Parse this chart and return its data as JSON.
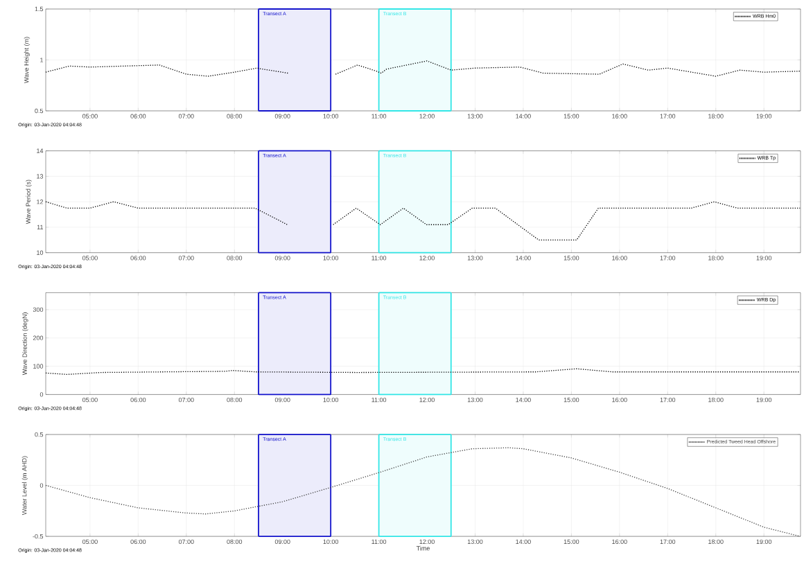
{
  "chart_data": [
    {
      "type": "line",
      "ylabel": "Wave Height (m)",
      "annotations": [
        "Origin: 03-Jan-2020 04:04:48"
      ],
      "xlim": [
        4.08,
        19.76
      ],
      "ylim": [
        0.5,
        1.5
      ],
      "yticks": [
        0.5,
        1,
        1.5
      ],
      "xticks": [
        {
          "value": 5,
          "label": "05:00"
        },
        {
          "value": 6,
          "label": "06:00"
        },
        {
          "value": 7,
          "label": "07:00"
        },
        {
          "value": 8,
          "label": "08:00"
        },
        {
          "value": 9,
          "label": "09:00"
        },
        {
          "value": 10,
          "label": "10:00"
        },
        {
          "value": 11,
          "label": "11:00"
        },
        {
          "value": 12,
          "label": "12:00"
        },
        {
          "value": 13,
          "label": "13:00"
        },
        {
          "value": 14,
          "label": "14:00"
        },
        {
          "value": 15,
          "label": "15:00"
        },
        {
          "value": 16,
          "label": "16:00"
        },
        {
          "value": 17,
          "label": "17:00"
        },
        {
          "value": 18,
          "label": "18:00"
        },
        {
          "value": 19,
          "label": "19:00"
        }
      ],
      "grid": true,
      "legend": "top right",
      "marker": "none",
      "line_style": "dotted",
      "bands": [
        {
          "axis": "x",
          "from": 8.5,
          "to": 10,
          "label": "Transect A",
          "color": "#1414cc"
        },
        {
          "axis": "x",
          "from": 11,
          "to": 12.5,
          "label": "Transect B",
          "color": "#33e6e6"
        }
      ],
      "series": [
        {
          "name": "WRB Hm0",
          "color": "#000000",
          "x": [
            4.08,
            4.57,
            5.0,
            6.44,
            7.0,
            7.45,
            8.0,
            8.47,
            8.58,
            9.12,
            9.6,
            10.1,
            10.56,
            10.95,
            11.05,
            11.16,
            12.0,
            12.5,
            13.0,
            13.93,
            14.42,
            15.58,
            16.07,
            16.6,
            17.0,
            18.0,
            18.5,
            19.0,
            19.76
          ],
          "values": [
            0.88,
            0.94,
            0.93,
            0.95,
            0.86,
            0.84,
            0.88,
            0.92,
            0.91,
            0.87,
            null,
            0.86,
            0.95,
            0.89,
            0.87,
            0.91,
            0.99,
            0.9,
            0.92,
            0.93,
            0.87,
            0.86,
            0.96,
            0.9,
            0.92,
            0.84,
            0.9,
            0.88,
            0.89
          ]
        }
      ]
    },
    {
      "type": "line",
      "ylabel": "Wave Period (s)",
      "annotations": [
        "Origin: 03-Jan-2020 04:04:48"
      ],
      "xlim": [
        4.08,
        19.76
      ],
      "ylim": [
        10,
        14
      ],
      "yticks": [
        10,
        11,
        12,
        13,
        14
      ],
      "xticks": [
        {
          "value": 5,
          "label": "05:00"
        },
        {
          "value": 6,
          "label": "06:00"
        },
        {
          "value": 7,
          "label": "07:00"
        },
        {
          "value": 8,
          "label": "08:00"
        },
        {
          "value": 9,
          "label": "09:00"
        },
        {
          "value": 10,
          "label": "10:00"
        },
        {
          "value": 11,
          "label": "11:00"
        },
        {
          "value": 12,
          "label": "12:00"
        },
        {
          "value": 13,
          "label": "13:00"
        },
        {
          "value": 14,
          "label": "14:00"
        },
        {
          "value": 15,
          "label": "15:00"
        },
        {
          "value": 16,
          "label": "16:00"
        },
        {
          "value": 17,
          "label": "17:00"
        },
        {
          "value": 18,
          "label": "18:00"
        },
        {
          "value": 19,
          "label": "19:00"
        }
      ],
      "grid": true,
      "legend": "top right",
      "marker": "none",
      "line_style": "dotted",
      "bands": [
        {
          "axis": "x",
          "from": 8.5,
          "to": 10,
          "label": "Transect A",
          "color": "#1414cc"
        },
        {
          "axis": "x",
          "from": 11,
          "to": 12.5,
          "label": "Transect B",
          "color": "#33e6e6"
        }
      ],
      "series": [
        {
          "name": "WRB Tp",
          "color": "#000000",
          "x": [
            4.08,
            4.52,
            5.0,
            5.49,
            6.0,
            8.43,
            9.1,
            9.6,
            10.05,
            10.53,
            11.03,
            11.51,
            11.99,
            12.44,
            12.94,
            13.42,
            14.32,
            15.11,
            15.56,
            17.49,
            17.97,
            18.45,
            19.75
          ],
          "values": [
            12.0,
            11.75,
            11.75,
            12.0,
            11.75,
            11.75,
            11.1,
            null,
            11.1,
            11.75,
            11.1,
            11.75,
            11.1,
            11.1,
            11.75,
            11.75,
            10.5,
            10.5,
            11.75,
            11.75,
            12.0,
            11.75,
            11.75
          ]
        }
      ]
    },
    {
      "type": "line",
      "ylabel": "Wave Direction (degN)",
      "annotations": [
        "Origin: 03-Jan-2020 04:04:48"
      ],
      "xlim": [
        4.08,
        19.76
      ],
      "ylim": [
        0,
        360
      ],
      "yticks": [
        0,
        100,
        200,
        300
      ],
      "xticks": [
        {
          "value": 5,
          "label": "05:00"
        },
        {
          "value": 6,
          "label": "06:00"
        },
        {
          "value": 7,
          "label": "07:00"
        },
        {
          "value": 8,
          "label": "08:00"
        },
        {
          "value": 9,
          "label": "09:00"
        },
        {
          "value": 10,
          "label": "10:00"
        },
        {
          "value": 11,
          "label": "11:00"
        },
        {
          "value": 12,
          "label": "12:00"
        },
        {
          "value": 13,
          "label": "13:00"
        },
        {
          "value": 14,
          "label": "14:00"
        },
        {
          "value": 15,
          "label": "15:00"
        },
        {
          "value": 16,
          "label": "16:00"
        },
        {
          "value": 17,
          "label": "17:00"
        },
        {
          "value": 18,
          "label": "18:00"
        },
        {
          "value": 19,
          "label": "19:00"
        }
      ],
      "grid": true,
      "legend": "top right",
      "marker": "none",
      "line_style": "dotted",
      "bands": [
        {
          "axis": "x",
          "from": 8.5,
          "to": 10,
          "label": "Transect A",
          "color": "#1414cc"
        },
        {
          "axis": "x",
          "from": 11,
          "to": 12.5,
          "label": "Transect B",
          "color": "#33e6e6"
        }
      ],
      "series": [
        {
          "name": "WRB Dp",
          "color": "#000000",
          "x": [
            4.08,
            4.52,
            5.24,
            7.8,
            7.96,
            8.43,
            10.55,
            14.26,
            15.11,
            15.85,
            19.75
          ],
          "values": [
            76,
            71,
            78,
            82,
            85,
            80,
            78,
            80,
            91,
            80,
            80
          ]
        }
      ]
    },
    {
      "type": "line",
      "ylabel": "Water Level (m AHD)",
      "xlabel": "Time",
      "annotations": [
        "Origin: 03-Jan-2020 04:04:48"
      ],
      "xlim": [
        4.08,
        19.76
      ],
      "ylim": [
        -0.5,
        0.5
      ],
      "yticks": [
        -0.5,
        0,
        0.5
      ],
      "xticks": [
        {
          "value": 5,
          "label": "05:00"
        },
        {
          "value": 6,
          "label": "06:00"
        },
        {
          "value": 7,
          "label": "07:00"
        },
        {
          "value": 8,
          "label": "08:00"
        },
        {
          "value": 9,
          "label": "09:00"
        },
        {
          "value": 10,
          "label": "10:00"
        },
        {
          "value": 11,
          "label": "11:00"
        },
        {
          "value": 12,
          "label": "12:00"
        },
        {
          "value": 13,
          "label": "13:00"
        },
        {
          "value": 14,
          "label": "14:00"
        },
        {
          "value": 15,
          "label": "15:00"
        },
        {
          "value": 16,
          "label": "16:00"
        },
        {
          "value": 17,
          "label": "17:00"
        },
        {
          "value": 18,
          "label": "18:00"
        },
        {
          "value": 19,
          "label": "19:00"
        }
      ],
      "grid": true,
      "legend": "top right",
      "marker": "none",
      "line_style": "dotted",
      "bands": [
        {
          "axis": "x",
          "from": 8.5,
          "to": 10,
          "label": "Transect A",
          "color": "#1414cc"
        },
        {
          "axis": "x",
          "from": 11,
          "to": 12.5,
          "label": "Transect B",
          "color": "#33e6e6"
        }
      ],
      "series": [
        {
          "name": "Predicted Tweed Head Offshore",
          "color": "#444444",
          "x": [
            4.08,
            5.0,
            6.0,
            6.98,
            7.4,
            8.0,
            9.0,
            10.0,
            11.03,
            12.0,
            12.94,
            13.7,
            14.0,
            15.0,
            16.0,
            17.0,
            18.0,
            19.0,
            19.75
          ],
          "values": [
            0.0,
            -0.12,
            -0.22,
            -0.27,
            -0.28,
            -0.25,
            -0.16,
            -0.02,
            0.13,
            0.28,
            0.36,
            0.37,
            0.36,
            0.27,
            0.13,
            -0.03,
            -0.22,
            -0.41,
            -0.5
          ]
        }
      ]
    }
  ]
}
